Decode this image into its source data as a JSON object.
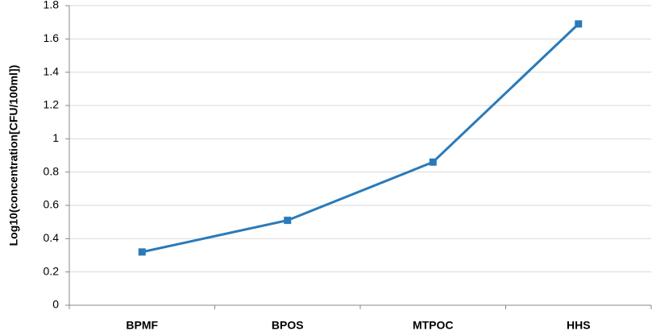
{
  "chart_data": {
    "type": "line",
    "y_label": "Log10(concentration[CFU/100ml])",
    "categories": [
      "BPMF",
      "BPOS",
      "MTPOC",
      "HHS"
    ],
    "series": [
      {
        "values": [
          0.32,
          0.51,
          0.86,
          1.69
        ],
        "color": "#2a7ab9"
      }
    ],
    "ylim": [
      0,
      1.8
    ],
    "yticks": [
      0,
      0.2,
      0.4,
      0.6,
      0.8,
      1,
      1.2,
      1.4,
      1.6,
      1.8
    ],
    "grid": true
  }
}
